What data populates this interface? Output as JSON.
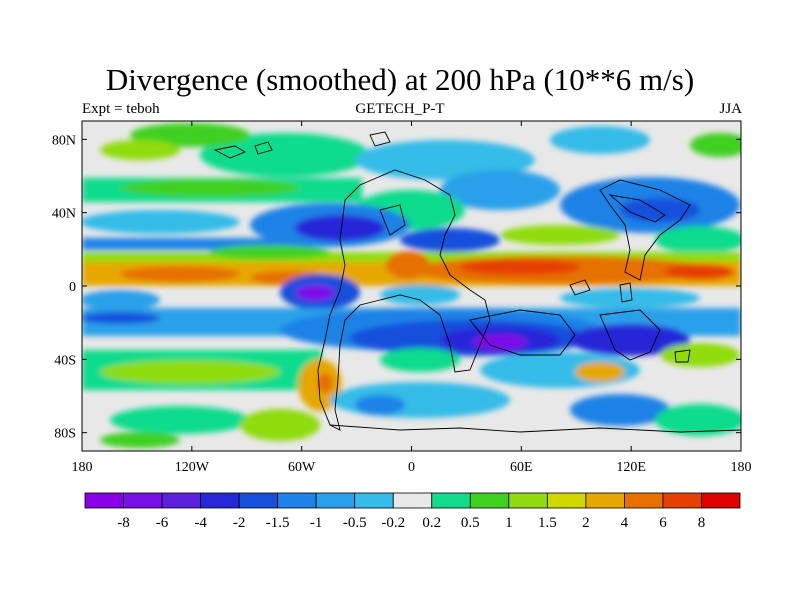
{
  "title": "Divergence (smoothed) at 200 hPa (10**6 m/s)",
  "left_label": "Expt = teboh",
  "center_label": "GETECH_P-T",
  "right_label": "JJA",
  "lat_ticks": [
    {
      "value": 80,
      "label": "80N"
    },
    {
      "value": 40,
      "label": "40N"
    },
    {
      "value": 0,
      "label": "0"
    },
    {
      "value": -40,
      "label": "40S"
    },
    {
      "value": -80,
      "label": "80S"
    }
  ],
  "lon_ticks": [
    {
      "value": -180,
      "label": "180"
    },
    {
      "value": -120,
      "label": "120W"
    },
    {
      "value": -60,
      "label": "60W"
    },
    {
      "value": 0,
      "label": "0"
    },
    {
      "value": 60,
      "label": "60E"
    },
    {
      "value": 120,
      "label": "120E"
    },
    {
      "value": 180,
      "label": "180"
    }
  ],
  "colorbar": {
    "colors": [
      "#8a00e6",
      "#7a10e8",
      "#5a20dc",
      "#2828d8",
      "#1450dc",
      "#1e82e6",
      "#2aa0ea",
      "#36bce8",
      "#e8e8e8",
      "#10dc8c",
      "#40d020",
      "#90dc10",
      "#d0d800",
      "#e6a800",
      "#e67000",
      "#e64000",
      "#e00000"
    ],
    "labels": [
      "-8",
      "-6",
      "-4",
      "-2",
      "-1.5",
      "-1",
      "-0.5",
      "-0.2",
      "0.2",
      "0.5",
      "1",
      "1.5",
      "2",
      "4",
      "6",
      "8"
    ]
  }
}
